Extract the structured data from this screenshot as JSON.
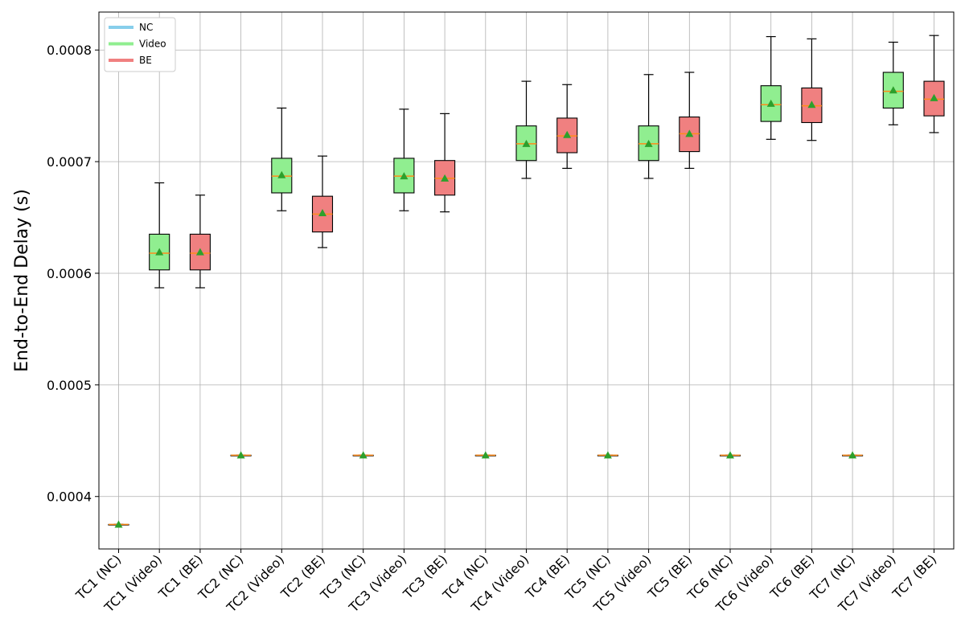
{
  "chart_data": {
    "type": "box",
    "title": "",
    "xlabel": "",
    "ylabel": "End-to-End Delay (s)",
    "ylim": [
      0.000353,
      0.000834
    ],
    "yticks": [
      0.0004,
      0.0005,
      0.0006,
      0.0007,
      0.0008
    ],
    "ytick_labels": [
      "0.0004",
      "0.0005",
      "0.0006",
      "0.0007",
      "0.0008"
    ],
    "grid": true,
    "legend_position": "top-left",
    "legend": [
      {
        "name": "NC",
        "color": "#87ceeb"
      },
      {
        "name": "Video",
        "color": "#90ee90"
      },
      {
        "name": "BE",
        "color": "#f08080"
      }
    ],
    "median_color": "#ff8c1a",
    "mean_marker_color": "#2ca02c",
    "categories": [
      "TC1 (NC)",
      "TC1 (Video)",
      "TC1 (BE)",
      "TC2 (NC)",
      "TC2 (Video)",
      "TC2 (BE)",
      "TC3 (NC)",
      "TC3 (Video)",
      "TC3 (BE)",
      "TC4 (NC)",
      "TC4 (Video)",
      "TC4 (BE)",
      "TC5 (NC)",
      "TC5 (Video)",
      "TC5 (BE)",
      "TC6 (NC)",
      "TC6 (Video)",
      "TC6 (BE)",
      "TC7 (NC)",
      "TC7 (Video)",
      "TC7 (BE)"
    ],
    "boxes": [
      {
        "class": "NC",
        "whisker_low": 0.000375,
        "q1": 0.000375,
        "median": 0.000375,
        "q3": 0.000375,
        "whisker_high": 0.000375,
        "mean": 0.000375
      },
      {
        "class": "Video",
        "whisker_low": 0.000587,
        "q1": 0.000603,
        "median": 0.000618,
        "q3": 0.000635,
        "whisker_high": 0.000681,
        "mean": 0.000619
      },
      {
        "class": "BE",
        "whisker_low": 0.000587,
        "q1": 0.000603,
        "median": 0.000618,
        "q3": 0.000635,
        "whisker_high": 0.00067,
        "mean": 0.000619
      },
      {
        "class": "NC",
        "whisker_low": 0.000437,
        "q1": 0.000437,
        "median": 0.000437,
        "q3": 0.000437,
        "whisker_high": 0.000437,
        "mean": 0.000437
      },
      {
        "class": "Video",
        "whisker_low": 0.000656,
        "q1": 0.000672,
        "median": 0.000687,
        "q3": 0.000703,
        "whisker_high": 0.000748,
        "mean": 0.000688
      },
      {
        "class": "BE",
        "whisker_low": 0.000623,
        "q1": 0.000637,
        "median": 0.000653,
        "q3": 0.000669,
        "whisker_high": 0.000705,
        "mean": 0.000654
      },
      {
        "class": "NC",
        "whisker_low": 0.000437,
        "q1": 0.000437,
        "median": 0.000437,
        "q3": 0.000437,
        "whisker_high": 0.000437,
        "mean": 0.000437
      },
      {
        "class": "Video",
        "whisker_low": 0.000656,
        "q1": 0.000672,
        "median": 0.000687,
        "q3": 0.000703,
        "whisker_high": 0.000747,
        "mean": 0.000687
      },
      {
        "class": "BE",
        "whisker_low": 0.000655,
        "q1": 0.00067,
        "median": 0.000685,
        "q3": 0.000701,
        "whisker_high": 0.000743,
        "mean": 0.000685
      },
      {
        "class": "NC",
        "whisker_low": 0.000437,
        "q1": 0.000437,
        "median": 0.000437,
        "q3": 0.000437,
        "whisker_high": 0.000437,
        "mean": 0.000437
      },
      {
        "class": "Video",
        "whisker_low": 0.000685,
        "q1": 0.000701,
        "median": 0.000716,
        "q3": 0.000732,
        "whisker_high": 0.000772,
        "mean": 0.000716
      },
      {
        "class": "BE",
        "whisker_low": 0.000694,
        "q1": 0.000708,
        "median": 0.000723,
        "q3": 0.000739,
        "whisker_high": 0.000769,
        "mean": 0.000724
      },
      {
        "class": "NC",
        "whisker_low": 0.000437,
        "q1": 0.000437,
        "median": 0.000437,
        "q3": 0.000437,
        "whisker_high": 0.000437,
        "mean": 0.000437
      },
      {
        "class": "Video",
        "whisker_low": 0.000685,
        "q1": 0.000701,
        "median": 0.000716,
        "q3": 0.000732,
        "whisker_high": 0.000778,
        "mean": 0.000716
      },
      {
        "class": "BE",
        "whisker_low": 0.000694,
        "q1": 0.000709,
        "median": 0.000725,
        "q3": 0.00074,
        "whisker_high": 0.00078,
        "mean": 0.000725
      },
      {
        "class": "NC",
        "whisker_low": 0.000437,
        "q1": 0.000437,
        "median": 0.000437,
        "q3": 0.000437,
        "whisker_high": 0.000437,
        "mean": 0.000437
      },
      {
        "class": "Video",
        "whisker_low": 0.00072,
        "q1": 0.000736,
        "median": 0.000751,
        "q3": 0.000768,
        "whisker_high": 0.000812,
        "mean": 0.000752
      },
      {
        "class": "BE",
        "whisker_low": 0.000719,
        "q1": 0.000735,
        "median": 0.00075,
        "q3": 0.000766,
        "whisker_high": 0.00081,
        "mean": 0.000751
      },
      {
        "class": "NC",
        "whisker_low": 0.000437,
        "q1": 0.000437,
        "median": 0.000437,
        "q3": 0.000437,
        "whisker_high": 0.000437,
        "mean": 0.000437
      },
      {
        "class": "Video",
        "whisker_low": 0.000733,
        "q1": 0.000748,
        "median": 0.000763,
        "q3": 0.00078,
        "whisker_high": 0.000807,
        "mean": 0.000764
      },
      {
        "class": "BE",
        "whisker_low": 0.000726,
        "q1": 0.000741,
        "median": 0.000756,
        "q3": 0.000772,
        "whisker_high": 0.000813,
        "mean": 0.000757
      }
    ]
  }
}
